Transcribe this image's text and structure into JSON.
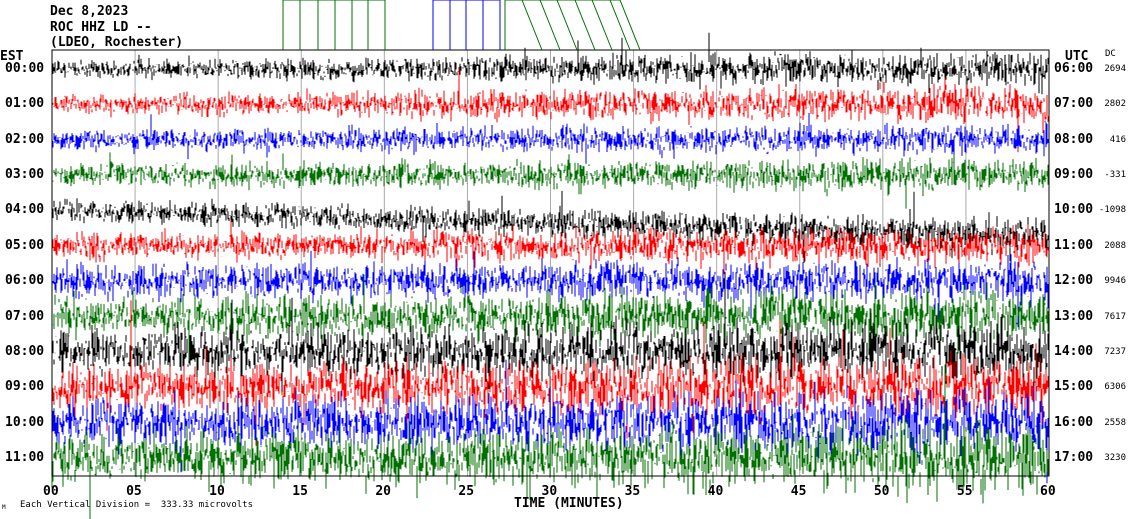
{
  "header": {
    "date": "Dec 8,2023",
    "station": "ROC HHZ LD --",
    "network": "(LDEO, Rochester)"
  },
  "chart_data": {
    "type": "line",
    "title": "Dec 8,2023 ROC HHZ LD -- (LDEO, Rochester)",
    "xlabel": "TIME (MINUTES)",
    "xlim": [
      0,
      60
    ],
    "x_ticks": [
      "00",
      "05",
      "10",
      "15",
      "20",
      "25",
      "30",
      "35",
      "40",
      "45",
      "50",
      "55",
      "60"
    ],
    "left_axis_title": "EST",
    "right_axis_title": "UTC",
    "dc_title": "DC",
    "scale_note": "Each Vertical Division =  333.33 microvolts",
    "corner_mark": "M",
    "trace_colors": [
      "#000000",
      "#ff0000",
      "#0000ff",
      "#007000"
    ],
    "rows": [
      {
        "est": "00:00",
        "utc": "06:00",
        "dc": "2694"
      },
      {
        "est": "01:00",
        "utc": "07:00",
        "dc": "2802"
      },
      {
        "est": "02:00",
        "utc": "08:00",
        "dc": "416"
      },
      {
        "est": "03:00",
        "utc": "09:00",
        "dc": "-331"
      },
      {
        "est": "04:00",
        "utc": "10:00",
        "dc": "-1098"
      },
      {
        "est": "05:00",
        "utc": "11:00",
        "dc": "2088"
      },
      {
        "est": "06:00",
        "utc": "12:00",
        "dc": "9946"
      },
      {
        "est": "07:00",
        "utc": "13:00",
        "dc": "7617"
      },
      {
        "est": "08:00",
        "utc": "14:00",
        "dc": "7237"
      },
      {
        "est": "09:00",
        "utc": "15:00",
        "dc": "6306"
      },
      {
        "est": "10:00",
        "utc": "16:00",
        "dc": "2558"
      },
      {
        "est": "11:00",
        "utc": "17:00",
        "dc": "3230"
      }
    ]
  }
}
